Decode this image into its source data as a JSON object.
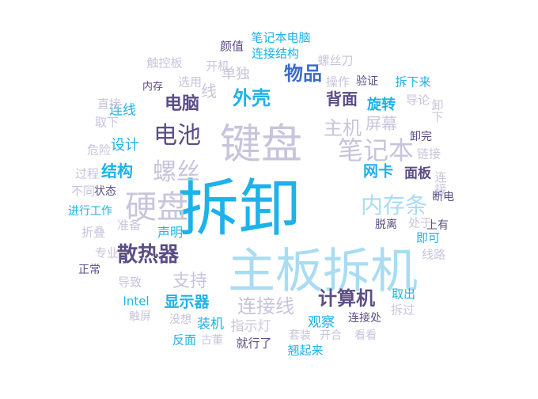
{
  "palette": {
    "cyan": "#1fb2e8",
    "lightblue": "#a9dcf3",
    "purple": "#5b4e86",
    "lavender": "#c9c4dc",
    "blue": "#3d6cc8"
  },
  "words": [
    {
      "t": "拆卸",
      "c": "cyan"
    },
    {
      "t": "主板拆机",
      "c": "lightblue"
    },
    {
      "t": "键盘",
      "c": "lavender"
    },
    {
      "t": "硬盘",
      "c": "lavender"
    },
    {
      "t": "内存条",
      "c": "lightblue"
    },
    {
      "t": "笔记本",
      "c": "lavender"
    },
    {
      "t": "电池",
      "c": "purple"
    },
    {
      "t": "螺丝",
      "c": "lavender"
    },
    {
      "t": "主机",
      "c": "lavender"
    },
    {
      "t": "散热器",
      "c": "purple"
    },
    {
      "t": "计算机",
      "c": "purple"
    },
    {
      "t": "连接线",
      "c": "lavender"
    },
    {
      "t": "支持",
      "c": "lavender"
    },
    {
      "t": "外壳",
      "c": "cyan"
    },
    {
      "t": "物品",
      "c": "blue"
    },
    {
      "t": "屏幕",
      "c": "lavender"
    },
    {
      "t": "背面",
      "c": "purple"
    },
    {
      "t": "电脑",
      "c": "purple"
    },
    {
      "t": "结构",
      "c": "cyan"
    },
    {
      "t": "显示器",
      "c": "cyan"
    },
    {
      "t": "网卡",
      "c": "cyan"
    },
    {
      "t": "面板",
      "c": "purple"
    },
    {
      "t": "旋转",
      "c": "cyan"
    },
    {
      "t": "设计",
      "c": "cyan"
    },
    {
      "t": "连线",
      "c": "cyan"
    },
    {
      "t": "单独",
      "c": "lavender"
    },
    {
      "t": "线",
      "c": "lavender"
    },
    {
      "t": "笔记本电脑",
      "c": "cyan"
    },
    {
      "t": "连接结构",
      "c": "cyan"
    },
    {
      "t": "颜值",
      "c": "purple"
    },
    {
      "t": "开机",
      "c": "lavender"
    },
    {
      "t": "触控板",
      "c": "lavender"
    },
    {
      "t": "螺丝刀",
      "c": "lavender"
    },
    {
      "t": "操作",
      "c": "lavender"
    },
    {
      "t": "验证",
      "c": "purple"
    },
    {
      "t": "内存",
      "c": "purple"
    },
    {
      "t": "选用",
      "c": "lavender"
    },
    {
      "t": "拆下来",
      "c": "cyan"
    },
    {
      "t": "导论",
      "c": "lavender"
    },
    {
      "t": "直接",
      "c": "lavender"
    },
    {
      "t": "取下",
      "c": "lavender"
    },
    {
      "t": "卸下",
      "c": "lavender"
    },
    {
      "t": "卸完",
      "c": "purple"
    },
    {
      "t": "危险",
      "c": "lavender"
    },
    {
      "t": "链接",
      "c": "lavender"
    },
    {
      "t": "过程",
      "c": "lavender"
    },
    {
      "t": "连接",
      "c": "lavender"
    },
    {
      "t": "不同",
      "c": "lavender"
    },
    {
      "t": "状态",
      "c": "purple"
    },
    {
      "t": "断电",
      "c": "purple"
    },
    {
      "t": "进行工作",
      "c": "cyan"
    },
    {
      "t": "脱离",
      "c": "purple"
    },
    {
      "t": "处于",
      "c": "lavender"
    },
    {
      "t": "上有",
      "c": "purple"
    },
    {
      "t": "折叠",
      "c": "lavender"
    },
    {
      "t": "准备",
      "c": "lavender"
    },
    {
      "t": "声明",
      "c": "cyan"
    },
    {
      "t": "即可",
      "c": "cyan"
    },
    {
      "t": "专业",
      "c": "lavender"
    },
    {
      "t": "线路",
      "c": "lavender"
    },
    {
      "t": "正常",
      "c": "purple"
    },
    {
      "t": "导致",
      "c": "lavender"
    },
    {
      "t": "Intel",
      "c": "cyan"
    },
    {
      "t": "取出",
      "c": "cyan"
    },
    {
      "t": "拆过",
      "c": "lavender"
    },
    {
      "t": "触屏",
      "c": "lavender"
    },
    {
      "t": "没想",
      "c": "lavender"
    },
    {
      "t": "装机",
      "c": "cyan"
    },
    {
      "t": "指示灯",
      "c": "lavender"
    },
    {
      "t": "观察",
      "c": "cyan"
    },
    {
      "t": "连接处",
      "c": "purple"
    },
    {
      "t": "开合",
      "c": "lavender"
    },
    {
      "t": "看看",
      "c": "lavender"
    },
    {
      "t": "反面",
      "c": "cyan"
    },
    {
      "t": "古董",
      "c": "lavender"
    },
    {
      "t": "套装",
      "c": "lavender"
    },
    {
      "t": "就行了",
      "c": "purple"
    },
    {
      "t": "翘起来",
      "c": "cyan"
    }
  ]
}
